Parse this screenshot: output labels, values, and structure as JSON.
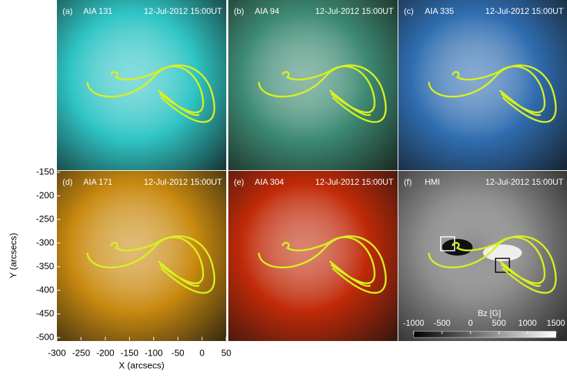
{
  "chart_data": {
    "type": "image",
    "panels": [
      {
        "label": "(a)",
        "instrument": "AIA 131",
        "date": "12-Jul-2012 15:00UT",
        "color": "#2fc4c4"
      },
      {
        "label": "(b)",
        "instrument": "AIA 94",
        "date": "12-Jul-2012 15:00UT",
        "color": "#3d8a72"
      },
      {
        "label": "(c)",
        "instrument": "AIA 335",
        "date": "12-Jul-2012 15:00UT",
        "color": "#2f6db0"
      },
      {
        "label": "(d)",
        "instrument": "AIA 171",
        "date": "12-Jul-2012 15:00UT",
        "color": "#c98a10"
      },
      {
        "label": "(e)",
        "instrument": "AIA 304",
        "date": "12-Jul-2012 15:00UT",
        "color": "#c02a08"
      },
      {
        "label": "(f)",
        "instrument": "HMI",
        "date": "12-Jul-2012 15:00UT",
        "color": "#808080"
      }
    ],
    "xlabel": "X (arcsecs)",
    "ylabel": "Y (arcsecs)",
    "xlim": [
      -300,
      50
    ],
    "xticks": [
      -300,
      -250,
      -200,
      -150,
      -100,
      -50,
      0,
      50
    ],
    "ylim": [
      -500,
      -150
    ],
    "yticks": [
      -150,
      -200,
      -250,
      -300,
      -350,
      -400,
      -450,
      -500
    ],
    "colorbar": {
      "label": "Bz [G]",
      "lim": [
        -1000,
        1500
      ],
      "ticks": [
        -1000,
        -500,
        0,
        500,
        1000,
        1500
      ]
    }
  }
}
